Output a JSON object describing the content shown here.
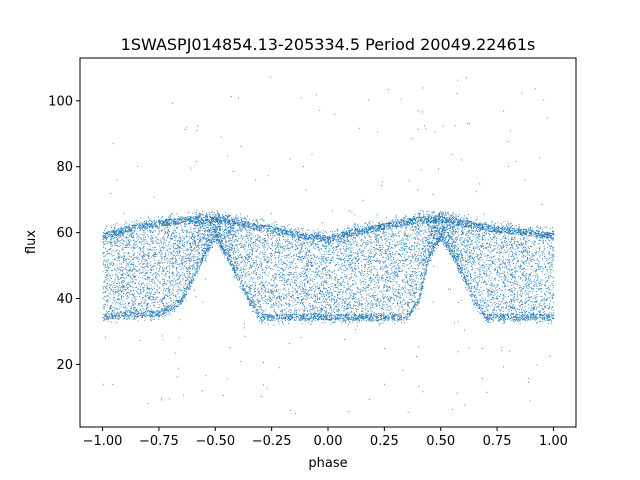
{
  "chart_data": {
    "type": "scatter",
    "title": "1SWASPJ014854.13-205334.5 Period 20049.22461s",
    "xlabel": "phase",
    "ylabel": "flux",
    "xlim": [
      -1.1,
      1.1
    ],
    "ylim": [
      1,
      113
    ],
    "xticks": [
      -1.0,
      -0.75,
      -0.5,
      -0.25,
      0.0,
      0.25,
      0.5,
      0.75,
      1.0
    ],
    "xtick_labels": [
      "−1.00",
      "−0.75",
      "−0.50",
      "−0.25",
      "0.00",
      "0.25",
      "0.50",
      "0.75",
      "1.00"
    ],
    "yticks": [
      20,
      40,
      60,
      80,
      100
    ],
    "ytick_labels": [
      "20",
      "40",
      "60",
      "80",
      "100"
    ],
    "grid": false,
    "legend": "none",
    "marker_color": "#1f77b4",
    "series": [
      {
        "description_of_shape": "",
        "x_range": [
          -1.0,
          1.0
        ],
        "upper_envelope": {
          "phase": [
            -1.0,
            -0.9,
            -0.75,
            -0.6,
            -0.5,
            -0.4,
            -0.25,
            -0.1,
            0.0,
            0.1,
            0.25,
            0.4,
            0.5,
            0.6,
            0.75,
            0.9,
            1.0
          ],
          "flux": [
            61,
            63,
            65,
            66,
            66,
            65,
            63,
            61,
            60,
            62,
            64,
            66,
            66,
            65,
            63,
            62,
            61
          ]
        },
        "lower_envelope": {
          "phase": [
            -1.0,
            -0.9,
            -0.75,
            -0.65,
            -0.55,
            -0.5,
            -0.45,
            -0.35,
            -0.3,
            -0.1,
            0.0,
            0.1,
            0.35,
            0.4,
            0.45,
            0.5,
            0.55,
            0.65,
            0.7,
            0.9,
            1.0
          ],
          "flux": [
            33,
            34,
            34,
            38,
            52,
            58,
            52,
            38,
            33,
            33,
            33,
            33,
            33,
            38,
            52,
            58,
            52,
            38,
            33,
            33,
            33
          ]
        }
      }
    ]
  }
}
